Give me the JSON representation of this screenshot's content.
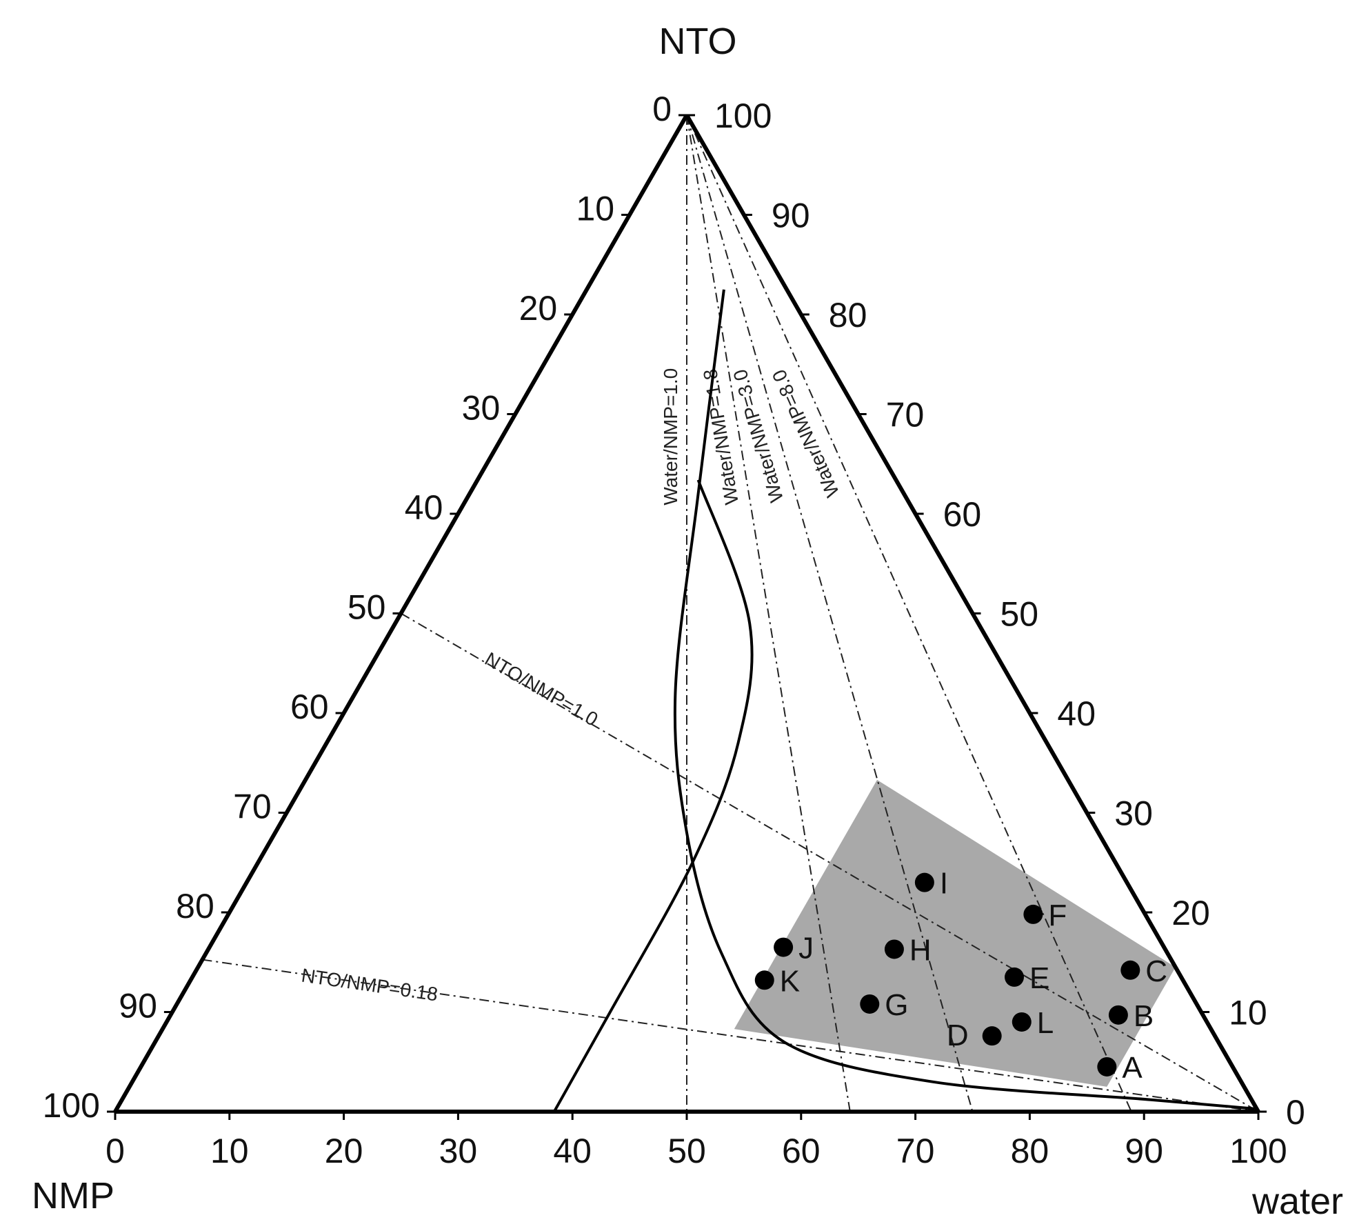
{
  "chart_data": {
    "type": "scatter",
    "subtype": "ternary",
    "vertices": {
      "top": "NTO",
      "bottom_left": "NMP",
      "bottom_right": "water"
    },
    "axes": {
      "bottom": {
        "component": "water",
        "ticks": [
          "0",
          "10",
          "20",
          "30",
          "40",
          "50",
          "60",
          "70",
          "80",
          "90",
          "100"
        ],
        "range": [
          0,
          100
        ]
      },
      "left": {
        "component": "NMP",
        "ticks": [
          "0",
          "10",
          "20",
          "30",
          "40",
          "50",
          "60",
          "70",
          "80",
          "90",
          "100"
        ],
        "range": [
          0,
          100
        ]
      },
      "right": {
        "component": "NTO",
        "ticks": [
          "0",
          "10",
          "20",
          "30",
          "40",
          "50",
          "60",
          "70",
          "80",
          "90",
          "100"
        ],
        "range": [
          0,
          100
        ]
      }
    },
    "ratio_lines": [
      {
        "label": "Water/NMP=1.0",
        "ratio_water_nmp": 1.0
      },
      {
        "label": "Water/NMP=1.8",
        "ratio_water_nmp": 1.8
      },
      {
        "label": "Water/NMP=3.0",
        "ratio_water_nmp": 3.0
      },
      {
        "label": "Water/NMP=8.0",
        "ratio_water_nmp": 8.0
      },
      {
        "label": "NTO/NMP=1.0",
        "ratio_nto_nmp": 1.0
      },
      {
        "label": "NTO/NMP=0.18",
        "ratio_nto_nmp": 0.18
      }
    ],
    "shaded_region": [
      {
        "water": 50,
        "nto": 33.3
      },
      {
        "water": 85.5,
        "nto": 14.5
      },
      {
        "water": 85.5,
        "nto": 2.5
      },
      {
        "water": 50,
        "nto": 8.3
      }
    ],
    "boundary_curves": [
      {
        "points": [
          {
            "water": 19.3,
            "nto": 63.4
          },
          {
            "water": 31,
            "nto": 49
          },
          {
            "water": 36,
            "nto": 37
          },
          {
            "water": 38,
            "nto": 25
          },
          {
            "water": 38.3,
            "nto": 10
          },
          {
            "water": 38.4,
            "nto": 0
          }
        ]
      },
      {
        "points": [
          {
            "water": 12,
            "nto": 82.5
          },
          {
            "water": 20,
            "nto": 62
          },
          {
            "water": 28,
            "nto": 42
          },
          {
            "water": 36,
            "nto": 28
          },
          {
            "water": 45,
            "nto": 16
          },
          {
            "water": 55,
            "nto": 7
          },
          {
            "water": 70,
            "nto": 3
          },
          {
            "water": 90,
            "nto": 1.2
          },
          {
            "water": 99.5,
            "nto": 0.3
          }
        ]
      }
    ],
    "points": [
      {
        "label": "A",
        "water": 84.5,
        "nto": 4.5
      },
      {
        "label": "B",
        "water": 82.9,
        "nto": 9.7
      },
      {
        "label": "C",
        "water": 81.7,
        "nto": 14.2
      },
      {
        "label": "D",
        "water": 72.9,
        "nto": 7.6
      },
      {
        "label": "E",
        "water": 71.9,
        "nto": 13.5
      },
      {
        "label": "F",
        "water": 70.4,
        "nto": 19.8
      },
      {
        "label": "G",
        "water": 60.6,
        "nto": 10.8
      },
      {
        "label": "H",
        "water": 60.0,
        "nto": 16.3
      },
      {
        "label": "I",
        "water": 59.3,
        "nto": 23.0
      },
      {
        "label": "J",
        "water": 50.2,
        "nto": 16.5
      },
      {
        "label": "K",
        "water": 50.2,
        "nto": 13.2
      },
      {
        "label": "L",
        "water": 74.8,
        "nto": 9.0
      }
    ]
  }
}
